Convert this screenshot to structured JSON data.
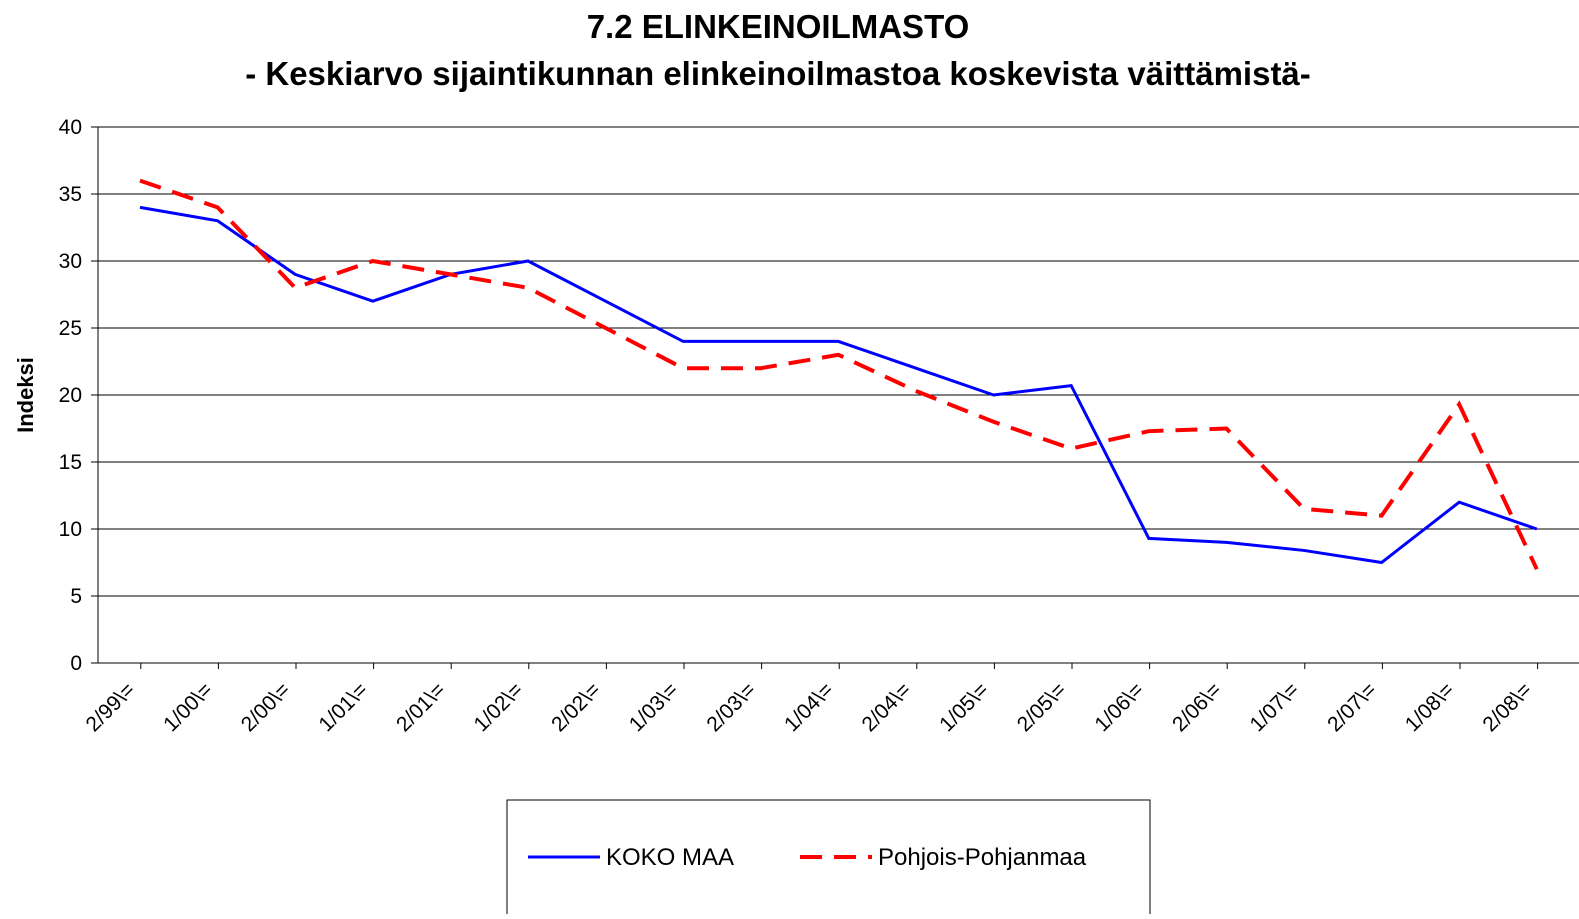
{
  "chart_data": {
    "type": "line",
    "title": "7.2 ELINKEINOILMASTO",
    "subtitle": "- Keskiarvo sijaintikunnan elinkeinoilmastoa koskevista väittämistä-",
    "y_label": "Indeksi",
    "categories": [
      "2/99\\=",
      "1/00\\=",
      "2/00\\=",
      "1/01\\=",
      "2/01\\=",
      "1/02\\=",
      "2/02\\=",
      "1/03\\=",
      "2/03\\=",
      "1/04\\=",
      "2/04\\=",
      "1/05\\=",
      "2/05\\=",
      "1/06\\=",
      "2/06\\=",
      "1/07\\=",
      "2/07\\=",
      "1/08\\=",
      "2/08\\="
    ],
    "series": [
      {
        "name": "KOKO MAA",
        "color": "#0000ff",
        "style": "solid",
        "values": [
          34,
          33,
          29,
          27,
          29,
          30,
          27,
          24,
          24,
          24,
          22,
          20,
          20.7,
          9.3,
          9,
          8.4,
          7.5,
          12,
          10
        ]
      },
      {
        "name": "Pohjois-Pohjanmaa",
        "color": "#ff0000",
        "style": "dashed",
        "values": [
          36,
          34,
          28,
          30,
          29,
          28,
          25,
          22,
          22,
          23,
          20.3,
          18,
          16,
          17.3,
          17.5,
          11.5,
          11,
          19.3,
          7
        ]
      }
    ],
    "ylim": [
      0,
      40
    ],
    "yticks": [
      0,
      5,
      10,
      15,
      20,
      25,
      30,
      35,
      40
    ],
    "grid": true
  }
}
